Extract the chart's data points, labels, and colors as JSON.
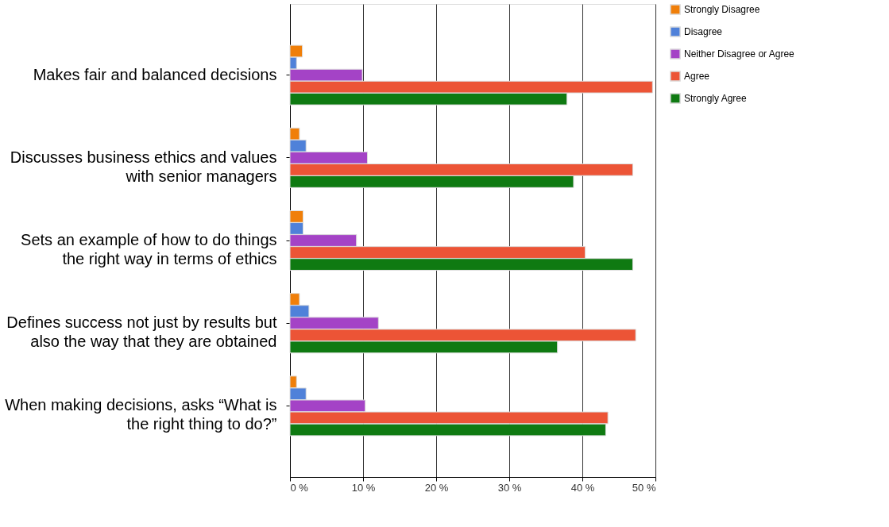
{
  "chart_data": {
    "type": "bar",
    "orientation": "horizontal",
    "categories": [
      "Makes fair and balanced decisions",
      "Discusses business ethics and values\nwith senior managers",
      "Sets an example of how to do things\nthe right way in terms of ethics",
      "Defines success not just by results but\nalso the way that they are obtained",
      "When making decisions, asks “What is\nthe right thing to do?”"
    ],
    "series": [
      {
        "name": "Strongly Disagree",
        "color": "#f07f09",
        "values": [
          1.7,
          1.3,
          1.8,
          1.3,
          0.9
        ]
      },
      {
        "name": "Disagree",
        "color": "#4f81d9",
        "values": [
          0.9,
          2.2,
          1.8,
          2.6,
          2.2
        ]
      },
      {
        "name": "Neither Disagree or Agree",
        "color": "#a443c6",
        "values": [
          9.9,
          10.6,
          9.1,
          12.1,
          10.3
        ]
      },
      {
        "name": "Agree",
        "color": "#ec5436",
        "values": [
          49.6,
          46.9,
          40.4,
          47.3,
          43.5
        ]
      },
      {
        "name": "Strongly Agree",
        "color": "#0f7a12",
        "values": [
          37.9,
          38.8,
          46.9,
          36.6,
          43.2
        ]
      }
    ],
    "xlim": [
      0,
      50
    ],
    "xticks": [
      {
        "value": 0,
        "label": "0 %"
      },
      {
        "value": 10,
        "label": "10 %"
      },
      {
        "value": 20,
        "label": "20 %"
      },
      {
        "value": 30,
        "label": "30 %"
      },
      {
        "value": 40,
        "label": "40 %"
      },
      {
        "value": 50,
        "label": "50 %"
      }
    ],
    "grid": "x",
    "legend": "right"
  }
}
